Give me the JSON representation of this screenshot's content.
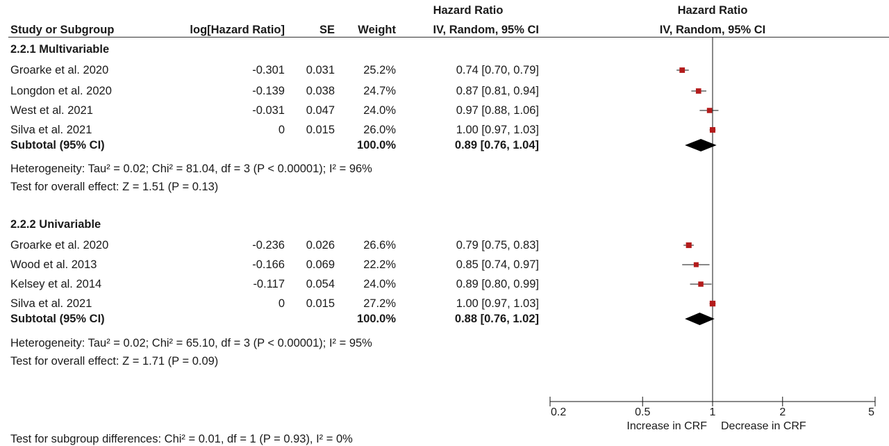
{
  "header": {
    "group_title_left": "Hazard Ratio",
    "group_title_right": "Hazard Ratio",
    "col_study": "Study or Subgroup",
    "col_loghr": "log[Hazard Ratio]",
    "col_se": "SE",
    "col_weight": "Weight",
    "col_ci": "IV, Random, 95% CI",
    "col_plot": "IV, Random, 95% CI"
  },
  "subgroups": [
    {
      "title": "2.2.1 Multivariable",
      "rows": [
        {
          "study": "Groarke et al. 2020",
          "loghr": "-0.301",
          "se": "0.031",
          "weight": "25.2%",
          "ci": "0.74 [0.70, 0.79]"
        },
        {
          "study": "Longdon et al. 2020",
          "loghr": "-0.139",
          "se": "0.038",
          "weight": "24.7%",
          "ci": "0.87 [0.81, 0.94]"
        },
        {
          "study": "West et al. 2021",
          "loghr": "-0.031",
          "se": "0.047",
          "weight": "24.0%",
          "ci": "0.97 [0.88, 1.06]"
        },
        {
          "study": "Silva et al. 2021",
          "loghr": "0",
          "se": "0.015",
          "weight": "26.0%",
          "ci": "1.00 [0.97, 1.03]"
        }
      ],
      "subtotal": {
        "label": "Subtotal (95% CI)",
        "weight": "100.0%",
        "ci": "0.89 [0.76, 1.04]"
      },
      "heterogeneity": "Heterogeneity: Tau² = 0.02; Chi² = 81.04, df = 3 (P < 0.00001); I² = 96%",
      "overall": "Test for overall effect: Z = 1.51 (P = 0.13)"
    },
    {
      "title": "2.2.2 Univariable",
      "rows": [
        {
          "study": "Groarke et al. 2020",
          "loghr": "-0.236",
          "se": "0.026",
          "weight": "26.6%",
          "ci": "0.79 [0.75, 0.83]"
        },
        {
          "study": "Wood et al. 2013",
          "loghr": "-0.166",
          "se": "0.069",
          "weight": "22.2%",
          "ci": "0.85 [0.74, 0.97]"
        },
        {
          "study": "Kelsey et al. 2014",
          "loghr": "-0.117",
          "se": "0.054",
          "weight": "24.0%",
          "ci": "0.89 [0.80, 0.99]"
        },
        {
          "study": "Silva et al. 2021",
          "loghr": "0",
          "se": "0.015",
          "weight": "27.2%",
          "ci": "1.00 [0.97, 1.03]"
        }
      ],
      "subtotal": {
        "label": "Subtotal (95% CI)",
        "weight": "100.0%",
        "ci": "0.88 [0.76, 1.02]"
      },
      "heterogeneity": "Heterogeneity: Tau² = 0.02; Chi² = 65.10, df = 3 (P < 0.00001); I² = 95%",
      "overall": "Test for overall effect: Z = 1.71 (P = 0.09)"
    }
  ],
  "footer": {
    "subgroup_test": "Test for subgroup differences: Chi² = 0.01, df = 1 (P = 0.93), I² = 0%"
  },
  "chart_data": {
    "type": "forest",
    "x_scale": "log",
    "xlim": [
      0.2,
      5
    ],
    "ticks": [
      "0.2",
      "0.5",
      "1",
      "2",
      "5"
    ],
    "tick_values": [
      0.2,
      0.5,
      1,
      2,
      5
    ],
    "reference_line": 1,
    "label_left": "Increase in CRF",
    "label_right": "Decrease in CRF",
    "marker_color": "#b31b1b",
    "diamond_color": "#000000",
    "studies": [
      {
        "group": 0,
        "name": "Groarke et al. 2020",
        "hr": 0.74,
        "lo": 0.7,
        "hi": 0.79,
        "weight": 25.2
      },
      {
        "group": 0,
        "name": "Longdon et al. 2020",
        "hr": 0.87,
        "lo": 0.81,
        "hi": 0.94,
        "weight": 24.7
      },
      {
        "group": 0,
        "name": "West et al. 2021",
        "hr": 0.97,
        "lo": 0.88,
        "hi": 1.06,
        "weight": 24.0
      },
      {
        "group": 0,
        "name": "Silva et al. 2021",
        "hr": 1.0,
        "lo": 0.97,
        "hi": 1.03,
        "weight": 26.0
      },
      {
        "group": 1,
        "name": "Groarke et al. 2020",
        "hr": 0.79,
        "lo": 0.75,
        "hi": 0.83,
        "weight": 26.6
      },
      {
        "group": 1,
        "name": "Wood et al. 2013",
        "hr": 0.85,
        "lo": 0.74,
        "hi": 0.97,
        "weight": 22.2
      },
      {
        "group": 1,
        "name": "Kelsey et al. 2014",
        "hr": 0.89,
        "lo": 0.8,
        "hi": 0.99,
        "weight": 24.0
      },
      {
        "group": 1,
        "name": "Silva et al. 2021",
        "hr": 1.0,
        "lo": 0.97,
        "hi": 1.03,
        "weight": 27.2
      }
    ],
    "subtotals": [
      {
        "group": 0,
        "hr": 0.89,
        "lo": 0.76,
        "hi": 1.04
      },
      {
        "group": 1,
        "hr": 0.88,
        "lo": 0.76,
        "hi": 1.02
      }
    ]
  }
}
